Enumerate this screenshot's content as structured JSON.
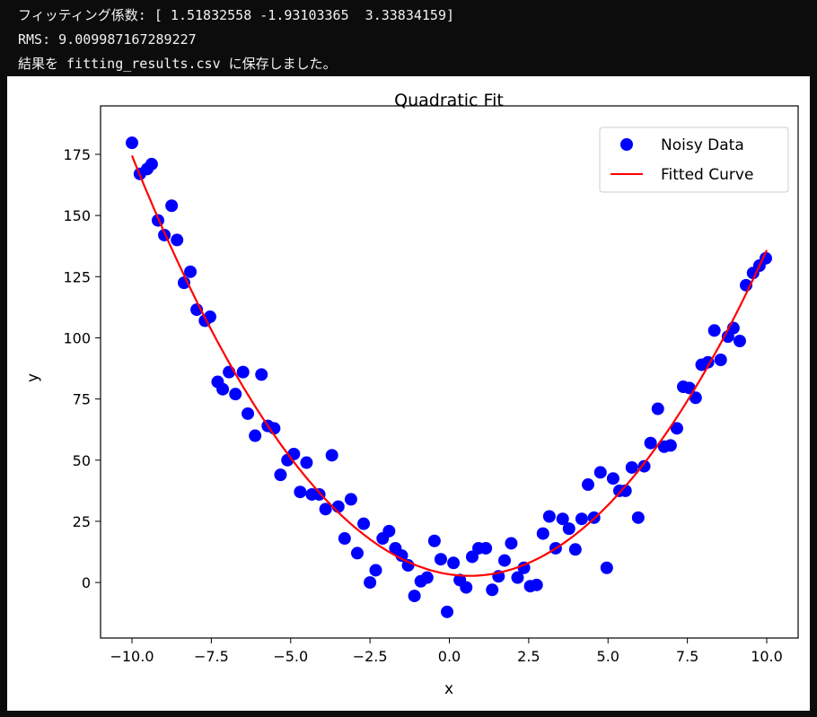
{
  "terminal": {
    "lines": [
      "フィッティング係数: [ 1.51832558 -1.93103365  3.33834159]",
      "RMS: 9.009987167289227",
      "結果を fitting_results.csv に保存しました。"
    ]
  },
  "chart_data": {
    "type": "scatter",
    "title": "Quadratic Fit",
    "xlabel": "x",
    "ylabel": "y",
    "xlim": [
      -10.99,
      10.99
    ],
    "ylim": [
      -22.7,
      194.8
    ],
    "xticks": [
      -10,
      -7.5,
      -5,
      -2.5,
      0,
      2.5,
      5,
      7.5,
      10
    ],
    "xtick_labels": [
      "−10.0",
      "−7.5",
      "−5.0",
      "−2.5",
      "0.0",
      "2.5",
      "5.0",
      "7.5",
      "10.0"
    ],
    "yticks": [
      0,
      25,
      50,
      75,
      100,
      125,
      150,
      175
    ],
    "ytick_labels": [
      "0",
      "25",
      "50",
      "75",
      "100",
      "125",
      "150",
      "175"
    ],
    "grid": false,
    "legend_position": "top-right",
    "series": [
      {
        "name": "Noisy Data",
        "kind": "scatter",
        "color": "#0000ff",
        "points": [
          [
            -10,
            179.7
          ],
          [
            -9.75,
            167
          ],
          [
            -9.52,
            169
          ],
          [
            -9.38,
            171
          ],
          [
            -9.18,
            148
          ],
          [
            -8.98,
            142
          ],
          [
            -8.75,
            154
          ],
          [
            -8.58,
            140
          ],
          [
            -8.36,
            122.5
          ],
          [
            -8.16,
            127
          ],
          [
            -7.96,
            111.5
          ],
          [
            -7.7,
            107
          ],
          [
            -7.54,
            108.6
          ],
          [
            -7.3,
            82
          ],
          [
            -7.14,
            79
          ],
          [
            -6.94,
            86
          ],
          [
            -6.74,
            77
          ],
          [
            -6.5,
            86
          ],
          [
            -6.35,
            69
          ],
          [
            -6.12,
            60
          ],
          [
            -5.92,
            85
          ],
          [
            -5.72,
            64
          ],
          [
            -5.52,
            63
          ],
          [
            -5.32,
            44
          ],
          [
            -5.1,
            50
          ],
          [
            -4.9,
            52.5
          ],
          [
            -4.7,
            37
          ],
          [
            -4.5,
            49
          ],
          [
            -4.33,
            36
          ],
          [
            -4.1,
            36
          ],
          [
            -3.9,
            30
          ],
          [
            -3.7,
            52
          ],
          [
            -3.5,
            31
          ],
          [
            -3.3,
            18
          ],
          [
            -3.1,
            34
          ],
          [
            -2.9,
            12
          ],
          [
            -2.7,
            24
          ],
          [
            -2.5,
            0
          ],
          [
            -2.32,
            5
          ],
          [
            -2.1,
            18
          ],
          [
            -1.9,
            21
          ],
          [
            -1.7,
            14
          ],
          [
            -1.5,
            11
          ],
          [
            -1.3,
            7
          ],
          [
            -1.1,
            -5.5
          ],
          [
            -0.9,
            0.5
          ],
          [
            -0.7,
            2
          ],
          [
            -0.47,
            17
          ],
          [
            -0.27,
            9.5
          ],
          [
            -0.07,
            -12
          ],
          [
            0.13,
            8
          ],
          [
            0.33,
            1
          ],
          [
            0.53,
            -2
          ],
          [
            0.72,
            10.5
          ],
          [
            0.92,
            14
          ],
          [
            1.15,
            14
          ],
          [
            1.35,
            -3
          ],
          [
            1.55,
            2.5
          ],
          [
            1.74,
            9
          ],
          [
            1.95,
            16
          ],
          [
            2.15,
            2
          ],
          [
            2.35,
            6
          ],
          [
            2.55,
            -1.5
          ],
          [
            2.75,
            -1
          ],
          [
            2.95,
            20
          ],
          [
            3.15,
            27
          ],
          [
            3.35,
            14
          ],
          [
            3.57,
            26
          ],
          [
            3.77,
            22
          ],
          [
            3.97,
            13.5
          ],
          [
            4.17,
            26
          ],
          [
            4.37,
            40
          ],
          [
            4.56,
            26.5
          ],
          [
            4.76,
            45
          ],
          [
            4.96,
            6
          ],
          [
            5.16,
            42.5
          ],
          [
            5.36,
            37.5
          ],
          [
            5.55,
            37.5
          ],
          [
            5.75,
            47
          ],
          [
            5.95,
            26.5
          ],
          [
            6.14,
            47.5
          ],
          [
            6.34,
            57
          ],
          [
            6.57,
            71
          ],
          [
            6.77,
            55.5
          ],
          [
            6.97,
            56
          ],
          [
            7.17,
            63
          ],
          [
            7.37,
            80
          ],
          [
            7.56,
            79.5
          ],
          [
            7.76,
            75.5
          ],
          [
            7.95,
            89
          ],
          [
            8.15,
            90
          ],
          [
            8.35,
            103
          ],
          [
            8.55,
            91
          ],
          [
            8.78,
            100.5
          ],
          [
            8.95,
            104
          ],
          [
            9.15,
            98.7
          ],
          [
            9.35,
            121.5
          ],
          [
            9.57,
            126.5
          ],
          [
            9.77,
            129.5
          ],
          [
            9.97,
            132.5
          ]
        ]
      },
      {
        "name": "Fitted Curve",
        "kind": "line",
        "color": "#ff0000",
        "coefficients": [
          1.51832558,
          -1.93103365,
          3.33834159
        ],
        "x_range": [
          -10,
          10
        ]
      }
    ]
  }
}
